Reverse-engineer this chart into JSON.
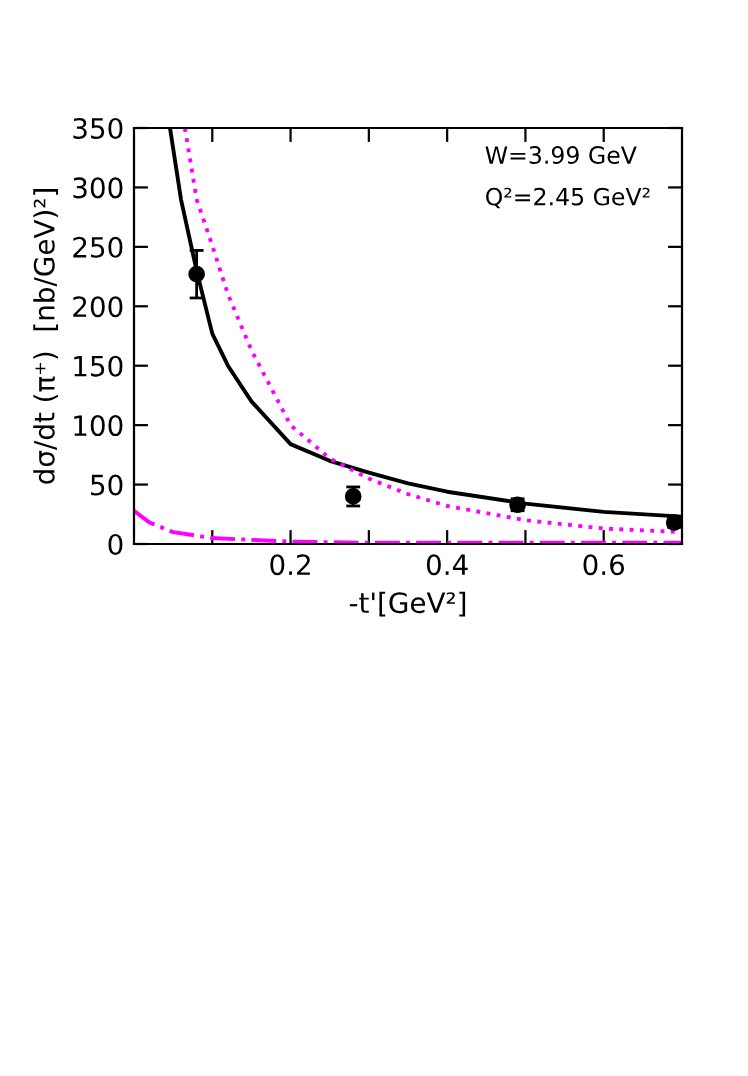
{
  "chart_data": {
    "type": "line",
    "xlabel": "-t'[GeV²]",
    "ylabel": "dσ/dt (π⁺)  [nb/GeV)²]",
    "annotations": [
      "W=3.99 GeV",
      "Q²=2.45 GeV²"
    ],
    "xlim": [
      0,
      0.7
    ],
    "ylim": [
      0,
      350
    ],
    "xticks": [
      {
        "value": 0.1,
        "label": null
      },
      0.2,
      {
        "value": 0.3,
        "label": null
      },
      0.4,
      {
        "value": 0.5,
        "label": null
      },
      0.6
    ],
    "yticks": [
      0,
      50,
      100,
      150,
      200,
      250,
      300,
      350
    ],
    "series": [
      {
        "color": "#000000",
        "line_style": "solid",
        "x": [
          0.046,
          0.06,
          0.08,
          0.1,
          0.12,
          0.15,
          0.2,
          0.25,
          0.3,
          0.35,
          0.4,
          0.5,
          0.6,
          0.7
        ],
        "values": [
          350,
          290,
          230,
          177,
          150,
          120,
          84,
          70,
          60,
          51,
          44,
          34,
          27,
          23
        ]
      },
      {
        "color": "#ff00ff",
        "line_style": "dotted",
        "x": [
          0.065,
          0.08,
          0.1,
          0.12,
          0.15,
          0.2,
          0.25,
          0.3,
          0.35,
          0.4,
          0.5,
          0.6,
          0.7
        ],
        "values": [
          350,
          290,
          251,
          210,
          163,
          100,
          72,
          55,
          42,
          32,
          20,
          13,
          10
        ]
      },
      {
        "color": "#ff00ff",
        "line_style": "dashdot",
        "x": [
          0,
          0.02,
          0.05,
          0.1,
          0.2,
          0.3,
          0.4,
          0.55,
          0.7
        ],
        "values": [
          28,
          18,
          10,
          5,
          2,
          1,
          1,
          1,
          1
        ]
      },
      {
        "type": "scatter",
        "color": "#000000",
        "marker": "circle",
        "x": [
          0.08,
          0.28,
          0.49,
          0.69
        ],
        "values": [
          227,
          40,
          33,
          18
        ],
        "errors": [
          20,
          8,
          5,
          4
        ]
      }
    ]
  }
}
